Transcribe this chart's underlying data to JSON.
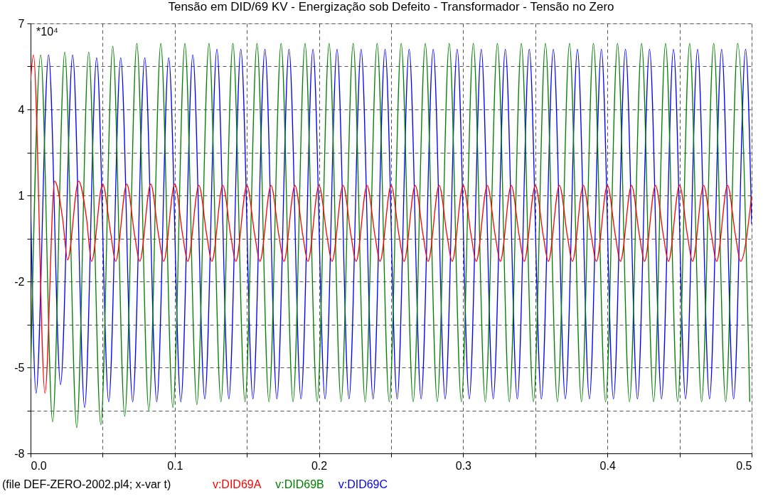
{
  "chart_data": {
    "type": "line",
    "title": "Tensão em DID/69 KV  - Energização sob Defeito - Transformador - Tensão no Zero",
    "annotations": [
      "*10⁴",
      "(file DEF-ZERO-2002.pl4; x-var t)"
    ],
    "xlim": [
      0,
      0.5
    ],
    "xticks": [
      {
        "value": 0,
        "label": "0.0"
      },
      {
        "value": 0.05,
        "label": null
      },
      0.1,
      {
        "value": 0.15,
        "label": null
      },
      0.2,
      {
        "value": 0.25,
        "label": null
      },
      0.3,
      {
        "value": 0.35,
        "label": null
      },
      0.4,
      {
        "value": 0.45,
        "label": null
      },
      0.5
    ],
    "ylim": [
      -8,
      7
    ],
    "yticks": [
      -8,
      {
        "value": -6.5,
        "label": null
      },
      -5,
      {
        "value": -3.5,
        "label": null
      },
      -2,
      {
        "value": -0.5,
        "label": null
      },
      1,
      {
        "value": 2.5,
        "label": null
      },
      4,
      {
        "value": 5.5,
        "label": null
      },
      7
    ],
    "grid": true,
    "legend": "bottom",
    "line_style": "solid",
    "marker": "none",
    "series": [
      {
        "name": "v:DID69A",
        "color": "#ff0000",
        "x": [
          0,
          0.002,
          0.01,
          0.0167,
          0.0222,
          0.0257,
          0.0333,
          0.0388,
          0.0423,
          0.05,
          0.0555,
          0.059,
          0.0667,
          0.0722,
          0.0757,
          0.0833,
          0.0888,
          0.0923,
          0.1,
          0.1055,
          0.109,
          0.1167,
          0.1222,
          0.1257,
          0.1333,
          0.1388,
          0.1423,
          0.15,
          0.1555,
          0.159,
          0.1667,
          0.1722,
          0.1757,
          0.1833,
          0.1888,
          0.1923,
          0.2,
          0.2055,
          0.209,
          0.2167,
          0.2222,
          0.2257,
          0.2333,
          0.2388,
          0.2423,
          0.25,
          0.2555,
          0.259,
          0.2667,
          0.2722,
          0.2757,
          0.2833,
          0.2888,
          0.2923,
          0.3,
          0.3055,
          0.309,
          0.3167,
          0.3222,
          0.3257,
          0.3333,
          0.3388,
          0.3423,
          0.35,
          0.3555,
          0.359,
          0.3667,
          0.3722,
          0.3757,
          0.3833,
          0.3888,
          0.3923,
          0.4,
          0.4055,
          0.409,
          0.4167,
          0.4222,
          0.4257,
          0.4333,
          0.4388,
          0.4423,
          0.45,
          0.4555,
          0.459,
          0.4667,
          0.4722,
          0.4757,
          0.4833,
          0.4888,
          0.4923,
          0.5
        ],
        "values": [
          5.0,
          5.9,
          -5.9,
          1.5,
          0.2,
          -1.25,
          1.5,
          0.2,
          -1.3,
          1.4,
          -0.3,
          -1.3,
          1.4,
          -0.4,
          -1.3,
          1.4,
          -0.4,
          -1.3,
          1.4,
          -0.4,
          -1.3,
          1.35,
          -0.4,
          -1.3,
          1.35,
          -0.4,
          -1.3,
          1.35,
          -0.4,
          -1.3,
          1.35,
          -0.4,
          -1.3,
          1.35,
          -0.4,
          -1.3,
          1.35,
          -0.4,
          -1.3,
          1.35,
          -0.4,
          -1.3,
          1.35,
          -0.4,
          -1.3,
          1.35,
          -0.4,
          -1.3,
          1.35,
          -0.4,
          -1.3,
          1.35,
          -0.4,
          -1.3,
          1.35,
          -0.4,
          -1.3,
          1.35,
          -0.4,
          -1.3,
          1.35,
          -0.4,
          -1.3,
          1.35,
          -0.4,
          -1.3,
          1.35,
          -0.4,
          -1.3,
          1.35,
          -0.4,
          -1.3,
          1.35,
          -0.4,
          -1.3,
          1.35,
          -0.4,
          -1.3,
          1.35,
          -0.4,
          -1.3,
          1.35,
          -0.4,
          -1.3,
          1.35,
          -0.4,
          -1.3,
          1.35,
          -0.4,
          -1.3,
          1.0
        ]
      },
      {
        "name": "v:DID69B",
        "color": "#008000",
        "x": [
          0,
          0.007,
          0.0153,
          0.0237,
          0.032,
          0.0403,
          0.0487,
          0.057,
          0.0653,
          0.0737,
          0.082,
          0.0903,
          0.0987,
          0.107,
          0.1153,
          0.1237,
          0.132,
          0.1403,
          0.1487,
          0.157,
          0.1653,
          0.1737,
          0.182,
          0.1903,
          0.1987,
          0.207,
          0.2153,
          0.2237,
          0.232,
          0.2403,
          0.2487,
          0.257,
          0.2653,
          0.2737,
          0.282,
          0.2903,
          0.2987,
          0.307,
          0.3153,
          0.3237,
          0.332,
          0.3403,
          0.3487,
          0.357,
          0.3653,
          0.3737,
          0.382,
          0.3903,
          0.3987,
          0.407,
          0.4153,
          0.4237,
          0.432,
          0.4403,
          0.4487,
          0.457,
          0.4653,
          0.4737,
          0.482,
          0.4903,
          0.4987
        ],
        "values": [
          -5.4,
          5.9,
          -6.9,
          6.0,
          -7.1,
          6.0,
          -7.0,
          6.2,
          -6.7,
          6.3,
          -6.5,
          6.3,
          -6.4,
          6.3,
          -6.3,
          6.3,
          -6.2,
          6.3,
          -6.2,
          6.3,
          -6.2,
          6.3,
          -6.2,
          6.3,
          -6.2,
          6.3,
          -6.2,
          6.3,
          -6.2,
          6.3,
          -6.2,
          6.3,
          -6.2,
          6.3,
          -6.2,
          6.3,
          -6.2,
          6.3,
          -6.2,
          6.3,
          -6.2,
          6.3,
          -6.2,
          6.3,
          -6.2,
          6.3,
          -6.2,
          6.3,
          -6.2,
          6.3,
          -6.2,
          6.3,
          -6.2,
          6.3,
          -6.2,
          6.3,
          -6.2,
          6.3,
          -6.2,
          6.3,
          -6.2
        ]
      },
      {
        "name": "v:DID69C",
        "color": "#0000ff",
        "x": [
          0,
          0.0038,
          0.0125,
          0.0208,
          0.0292,
          0.0375,
          0.0458,
          0.0542,
          0.0625,
          0.0708,
          0.0792,
          0.0875,
          0.0958,
          0.1042,
          0.1125,
          0.1208,
          0.1292,
          0.1375,
          0.1458,
          0.1542,
          0.1625,
          0.1708,
          0.1792,
          0.1875,
          0.1958,
          0.2042,
          0.2125,
          0.2208,
          0.2292,
          0.2375,
          0.2458,
          0.2542,
          0.2625,
          0.2708,
          0.2792,
          0.2875,
          0.2958,
          0.3042,
          0.3125,
          0.3208,
          0.3292,
          0.3375,
          0.3458,
          0.3542,
          0.3625,
          0.3708,
          0.3792,
          0.3875,
          0.3958,
          0.4042,
          0.4125,
          0.4208,
          0.4292,
          0.4375,
          0.4458,
          0.4542,
          0.4625,
          0.4708,
          0.4792,
          0.4875,
          0.4958,
          0.5
        ],
        "values": [
          0.8,
          -5.9,
          5.9,
          -5.6,
          5.9,
          -6.4,
          5.8,
          -6.2,
          5.8,
          -6.2,
          5.8,
          -6.2,
          5.8,
          -6.2,
          5.9,
          -6.1,
          6.1,
          -6.1,
          6.1,
          -6.1,
          6.1,
          -6.1,
          6.1,
          -6.1,
          6.1,
          -6.1,
          6.1,
          -6.1,
          6.1,
          -6.1,
          6.1,
          -6.1,
          6.1,
          -6.1,
          6.1,
          -6.1,
          6.1,
          -6.1,
          6.1,
          -6.1,
          6.1,
          -6.1,
          6.1,
          -6.1,
          6.1,
          -6.1,
          6.1,
          -6.1,
          6.1,
          -6.1,
          6.1,
          -6.1,
          6.1,
          -6.1,
          6.1,
          -6.1,
          6.1,
          -6.1,
          6.1,
          -6.1,
          6.1,
          0.0
        ]
      }
    ]
  }
}
